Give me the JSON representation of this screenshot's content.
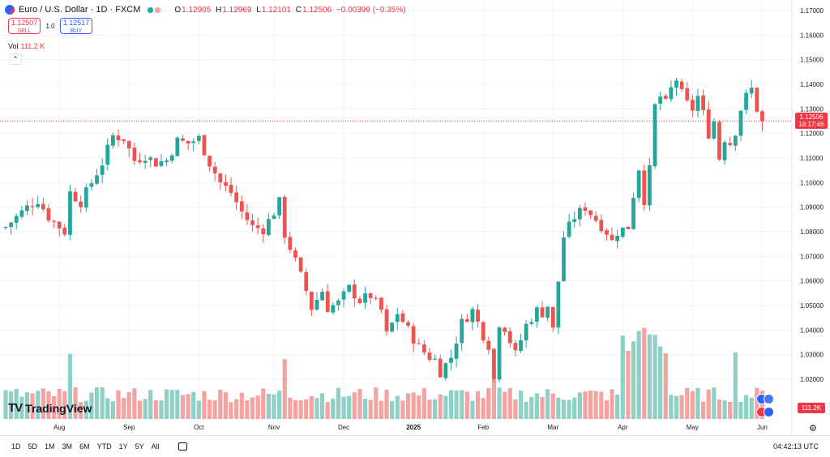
{
  "header": {
    "symbol_title": "Euro / U.S. Dollar · 1D · FXCM",
    "open_label": "O",
    "open": "1.12905",
    "high_label": "H",
    "high": "1.12969",
    "low_label": "L",
    "low": "1.12101",
    "close_label": "C",
    "close": "1.12506",
    "change": "−0.00399 (−0.35%)"
  },
  "trade": {
    "sell_price": "1.12507",
    "sell_label": "SELL",
    "quantity": "1.0",
    "buy_price": "1.12517",
    "buy_label": "BUY"
  },
  "volume": {
    "label": "Vol",
    "value": "111.2 K"
  },
  "logo_text": "TradingView",
  "price_label": {
    "price": "1.12506",
    "countdown": "16:17:46"
  },
  "volume_label": "111.2K",
  "timeframes": [
    "1D",
    "5D",
    "1M",
    "3M",
    "6M",
    "YTD",
    "1Y",
    "5Y",
    "All"
  ],
  "clock": "04:42:13 UTC",
  "colors": {
    "up": "#26a69a",
    "down": "#ef5350",
    "vol_up": "#8fd0c6",
    "vol_down": "#f5a3a1",
    "grid": "#f0f3fa",
    "price_line": "#f23645"
  },
  "chart_data": {
    "type": "candlestick",
    "title": "Euro / U.S. Dollar · 1D · FXCM",
    "y_axis": {
      "ticks": [
        "1.17000",
        "1.16000",
        "1.15000",
        "1.14000",
        "1.13000",
        "1.12000",
        "1.11000",
        "1.10000",
        "1.09000",
        "1.08000",
        "1.07000",
        "1.06000",
        "1.05000",
        "1.04000",
        "1.03000",
        "1.02000"
      ],
      "range": [
        1.0105,
        1.1715
      ]
    },
    "x_axis": {
      "labels": [
        {
          "label": "Aug",
          "index": 10
        },
        {
          "label": "Sep",
          "index": 23
        },
        {
          "label": "Oct",
          "index": 36
        },
        {
          "label": "Nov",
          "index": 50
        },
        {
          "label": "Dec",
          "index": 63
        },
        {
          "label": "2025",
          "index": 76
        },
        {
          "label": "Feb",
          "index": 89
        },
        {
          "label": "Mar",
          "index": 102
        },
        {
          "label": "Apr",
          "index": 115
        },
        {
          "label": "May",
          "index": 128
        },
        {
          "label": "Jun",
          "index": 141
        }
      ]
    },
    "last_price": 1.12506,
    "close_path": [
      [
        0,
        1.082
      ],
      [
        4,
        1.09
      ],
      [
        6,
        1.093
      ],
      [
        8,
        1.086
      ],
      [
        11,
        1.08
      ],
      [
        12,
        1.096
      ],
      [
        14,
        1.092
      ],
      [
        16,
        1.1
      ],
      [
        18,
        1.108
      ],
      [
        20,
        1.119
      ],
      [
        22,
        1.118
      ],
      [
        24,
        1.109
      ],
      [
        26,
        1.111
      ],
      [
        28,
        1.108
      ],
      [
        30,
        1.109
      ],
      [
        32,
        1.117
      ],
      [
        34,
        1.116
      ],
      [
        36,
        1.118
      ],
      [
        38,
        1.108
      ],
      [
        40,
        1.1
      ],
      [
        42,
        1.096
      ],
      [
        44,
        1.088
      ],
      [
        46,
        1.082
      ],
      [
        48,
        1.081
      ],
      [
        50,
        1.088
      ],
      [
        51,
        1.092
      ],
      [
        52,
        1.079
      ],
      [
        54,
        1.068
      ],
      [
        56,
        1.056
      ],
      [
        57,
        1.049
      ],
      [
        59,
        1.056
      ],
      [
        60,
        1.049
      ],
      [
        62,
        1.051
      ],
      [
        64,
        1.057
      ],
      [
        66,
        1.052
      ],
      [
        68,
        1.054
      ],
      [
        70,
        1.048
      ],
      [
        71,
        1.038
      ],
      [
        73,
        1.047
      ],
      [
        75,
        1.04
      ],
      [
        77,
        1.033
      ],
      [
        79,
        1.029
      ],
      [
        80,
        1.028
      ],
      [
        81,
        1.023
      ],
      [
        83,
        1.029
      ],
      [
        85,
        1.043
      ],
      [
        87,
        1.048
      ],
      [
        89,
        1.038
      ],
      [
        90,
        1.034
      ],
      [
        91,
        1.02
      ],
      [
        92,
        1.043
      ],
      [
        93,
        1.041
      ],
      [
        95,
        1.03
      ],
      [
        97,
        1.042
      ],
      [
        99,
        1.048
      ],
      [
        100,
        1.047
      ],
      [
        101,
        1.05
      ],
      [
        102,
        1.04
      ],
      [
        103,
        1.06
      ],
      [
        104,
        1.078
      ],
      [
        106,
        1.086
      ],
      [
        108,
        1.09
      ],
      [
        110,
        1.085
      ],
      [
        112,
        1.08
      ],
      [
        113,
        1.076
      ],
      [
        114,
        1.08
      ],
      [
        116,
        1.082
      ],
      [
        117,
        1.095
      ],
      [
        118,
        1.106
      ],
      [
        119,
        1.093
      ],
      [
        120,
        1.105
      ],
      [
        121,
        1.131
      ],
      [
        122,
        1.135
      ],
      [
        123,
        1.132
      ],
      [
        124,
        1.138
      ],
      [
        125,
        1.142
      ],
      [
        126,
        1.136
      ],
      [
        127,
        1.132
      ],
      [
        128,
        1.13
      ],
      [
        129,
        1.135
      ],
      [
        130,
        1.128
      ],
      [
        131,
        1.12
      ],
      [
        132,
        1.125
      ],
      [
        133,
        1.11
      ],
      [
        134,
        1.118
      ],
      [
        135,
        1.116
      ],
      [
        136,
        1.121
      ],
      [
        137,
        1.13
      ],
      [
        138,
        1.135
      ],
      [
        139,
        1.138
      ],
      [
        140,
        1.13
      ],
      [
        141,
        1.12506
      ]
    ],
    "volume_scale_max": 270,
    "volume_baseline": 100
  }
}
